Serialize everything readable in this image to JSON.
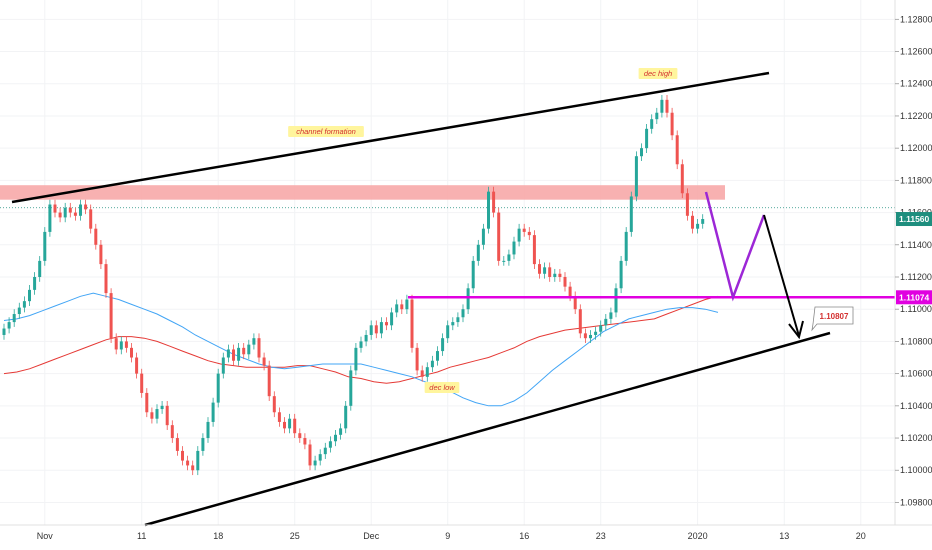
{
  "chart_data": {
    "type": "candlestick",
    "symbol_quote_levels": {
      "current_price": 1.1156,
      "support_level": 1.11074,
      "target_level": 1.10807
    },
    "y_axis": {
      "ylim": [
        1.0966,
        1.1292
      ],
      "ticks": [
        "1.12800",
        "1.12600",
        "1.12400",
        "1.12200",
        "1.12000",
        "1.11800",
        "1.11600",
        "1.11400",
        "1.11200",
        "1.11000",
        "1.10800",
        "1.10600",
        "1.10400",
        "1.10200",
        "1.10000",
        "1.09800"
      ]
    },
    "x_axis": {
      "ticks": [
        {
          "label": "Nov",
          "bar": 8
        },
        {
          "label": "11",
          "bar": 27
        },
        {
          "label": "18",
          "bar": 42
        },
        {
          "label": "25",
          "bar": 57
        },
        {
          "label": "Dec",
          "bar": 72
        },
        {
          "label": "9",
          "bar": 87
        },
        {
          "label": "16",
          "bar": 102
        },
        {
          "label": "23",
          "bar": 117
        },
        {
          "label": "2020",
          "bar": 136
        },
        {
          "label": "13",
          "bar": 153
        },
        {
          "label": "20",
          "bar": 168
        }
      ]
    },
    "candles_close": [
      1.1088,
      1.1092,
      1.1097,
      1.1101,
      1.1105,
      1.1112,
      1.112,
      1.113,
      1.1148,
      1.1165,
      1.116,
      1.1157,
      1.1163,
      1.116,
      1.1158,
      1.1165,
      1.1162,
      1.115,
      1.114,
      1.1128,
      1.111,
      1.1082,
      1.1075,
      1.108,
      1.1076,
      1.107,
      1.106,
      1.1048,
      1.1036,
      1.1032,
      1.1038,
      1.104,
      1.1028,
      1.102,
      1.1012,
      1.1006,
      1.1003,
      1.1,
      1.1012,
      1.102,
      1.103,
      1.1042,
      1.106,
      1.107,
      1.1075,
      1.1068,
      1.1076,
      1.1072,
      1.1078,
      1.1082,
      1.107,
      1.1065,
      1.1046,
      1.1036,
      1.103,
      1.1026,
      1.1032,
      1.1023,
      1.102,
      1.1016,
      1.1003,
      1.1006,
      1.101,
      1.1014,
      1.1018,
      1.1022,
      1.1026,
      1.104,
      1.1062,
      1.1076,
      1.108,
      1.1084,
      1.109,
      1.1085,
      1.1092,
      1.109,
      1.1098,
      1.1103,
      1.11,
      1.1106,
      1.1076,
      1.1062,
      1.1058,
      1.1064,
      1.1068,
      1.1074,
      1.1082,
      1.109,
      1.1092,
      1.1095,
      1.11,
      1.1113,
      1.113,
      1.114,
      1.115,
      1.1173,
      1.116,
      1.113,
      1.113,
      1.1134,
      1.1142,
      1.115,
      1.1148,
      1.1146,
      1.1128,
      1.1122,
      1.1126,
      1.112,
      1.1122,
      1.112,
      1.1114,
      1.1108,
      1.11,
      1.1085,
      1.1082,
      1.1084,
      1.1086,
      1.109,
      1.1094,
      1.1098,
      1.1113,
      1.113,
      1.1148,
      1.117,
      1.1195,
      1.12,
      1.1212,
      1.1218,
      1.1222,
      1.123,
      1.1222,
      1.1208,
      1.119,
      1.1172,
      1.1158,
      1.115,
      1.1153,
      1.1156
    ],
    "ma_blue": [
      1.1093,
      1.1094,
      1.1096,
      1.1099,
      1.1102,
      1.1105,
      1.1108,
      1.111,
      1.1108,
      1.1106,
      1.1103,
      1.11,
      1.1097,
      1.1093,
      1.1089,
      1.1084,
      1.108,
      1.1076,
      1.1072,
      1.1069,
      1.1066,
      1.1064,
      1.1063,
      1.1064,
      1.1065,
      1.1066,
      1.1066,
      1.1066,
      1.1066,
      1.1064,
      1.1062,
      1.106,
      1.1058,
      1.1055,
      1.1052,
      1.1049,
      1.1045,
      1.1042,
      1.104,
      1.104,
      1.1043,
      1.1048,
      1.1055,
      1.1062,
      1.1068,
      1.1074,
      1.108,
      1.1086,
      1.109,
      1.1094,
      1.1096,
      1.1098,
      1.11,
      1.1101,
      1.1101,
      1.11,
      1.1098
    ],
    "ma_red": [
      1.106,
      1.1061,
      1.1063,
      1.1066,
      1.1069,
      1.1072,
      1.1075,
      1.1078,
      1.1081,
      1.1083,
      1.1083,
      1.1082,
      1.108,
      1.1077,
      1.1074,
      1.1071,
      1.1068,
      1.1066,
      1.1065,
      1.1064,
      1.1064,
      1.1064,
      1.1064,
      1.1065,
      1.1065,
      1.1063,
      1.1061,
      1.1058,
      1.1057,
      1.1055,
      1.1054,
      1.1055,
      1.1057,
      1.1059,
      1.1061,
      1.1064,
      1.1066,
      1.1068,
      1.107,
      1.1073,
      1.1076,
      1.108,
      1.1083,
      1.1085,
      1.1087,
      1.1088,
      1.1089,
      1.109,
      1.1091,
      1.1092,
      1.1093,
      1.1094,
      1.1097,
      1.11,
      1.1103,
      1.1106,
      1.1108
    ],
    "annotations": {
      "channel": "channel formation",
      "dec_high": "dec high",
      "dec_low": "dec low"
    },
    "price_badges": {
      "current": "1.11560",
      "support": "1.11074",
      "target": "1.10807"
    },
    "colors": {
      "up": "#26a69a",
      "down": "#ef5350",
      "ma_blue": "#42a5f5",
      "ma_red": "#e53935",
      "resistance_zone": "#f7a9a8",
      "support_line": "#e000e0",
      "projection": "#9c27d6",
      "trendline": "#000000",
      "current_badge": "#1e8e7e",
      "support_badge": "#e000e0"
    }
  }
}
